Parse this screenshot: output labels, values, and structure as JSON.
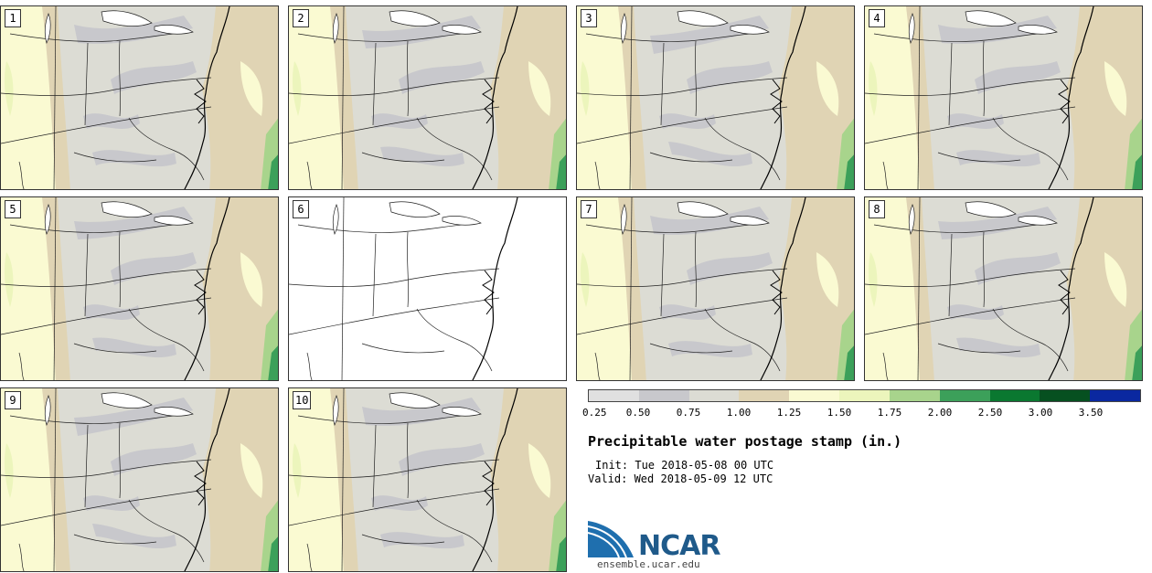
{
  "panels": [
    {
      "label": "1",
      "blank": false
    },
    {
      "label": "2",
      "blank": false
    },
    {
      "label": "3",
      "blank": false
    },
    {
      "label": "4",
      "blank": false
    },
    {
      "label": "5",
      "blank": false
    },
    {
      "label": "6",
      "blank": true
    },
    {
      "label": "7",
      "blank": false
    },
    {
      "label": "8",
      "blank": false
    },
    {
      "label": "9",
      "blank": false
    },
    {
      "label": "10",
      "blank": false
    }
  ],
  "colorbar": {
    "colors": [
      "#e0e0e0",
      "#c8c8cc",
      "#dcdcd4",
      "#e0d4b4",
      "#fafad2",
      "#ecf5bc",
      "#a8d48c",
      "#3ca05a",
      "#0a7830",
      "#065020",
      "#0a28a0"
    ],
    "ticks": [
      "0.25",
      "0.50",
      "0.75",
      "1.00",
      "1.25",
      "1.50",
      "1.75",
      "2.00",
      "2.50",
      "3.00",
      "3.50"
    ]
  },
  "title": "Precipitable water postage stamp (in.)",
  "init": "Init: Tue 2018-05-08 00 UTC",
  "valid": "Valid: Wed 2018-05-09 12 UTC",
  "logo": {
    "text": "NCAR",
    "site": "ensemble.ucar.edu",
    "color": "#1f5a8a"
  }
}
